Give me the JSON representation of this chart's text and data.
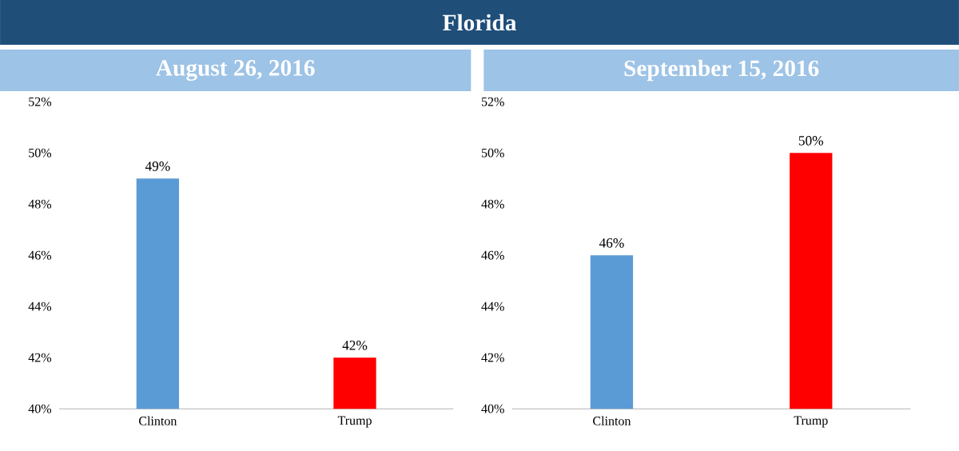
{
  "chart_data": [
    {
      "type": "bar",
      "title": "Florida",
      "subtitle": "August 26, 2016",
      "categories": [
        "Clinton",
        "Trump"
      ],
      "values": [
        49,
        42
      ],
      "colors": [
        "#5b9bd5",
        "#ff0000"
      ],
      "value_labels": [
        "49%",
        "42%"
      ],
      "ylim": [
        40,
        52
      ],
      "yticks": [
        {
          "value": 40,
          "label": "40%"
        },
        {
          "value": 42,
          "label": "42%"
        },
        {
          "value": 44,
          "label": "44%"
        },
        {
          "value": 46,
          "label": "46%"
        },
        {
          "value": 48,
          "label": "48%"
        },
        {
          "value": 50,
          "label": "50%"
        },
        {
          "value": 52,
          "label": "52%"
        }
      ]
    },
    {
      "type": "bar",
      "subtitle": "September 15, 2016",
      "categories": [
        "Clinton",
        "Trump"
      ],
      "values": [
        46,
        50
      ],
      "colors": [
        "#5b9bd5",
        "#ff0000"
      ],
      "value_labels": [
        "46%",
        "50%"
      ],
      "ylim": [
        40,
        52
      ],
      "yticks": [
        {
          "value": 40,
          "label": "40%"
        },
        {
          "value": 42,
          "label": "42%"
        },
        {
          "value": 44,
          "label": "44%"
        },
        {
          "value": 46,
          "label": "46%"
        },
        {
          "value": 48,
          "label": "48%"
        },
        {
          "value": 50,
          "label": "50%"
        },
        {
          "value": 52,
          "label": "52%"
        }
      ]
    }
  ]
}
